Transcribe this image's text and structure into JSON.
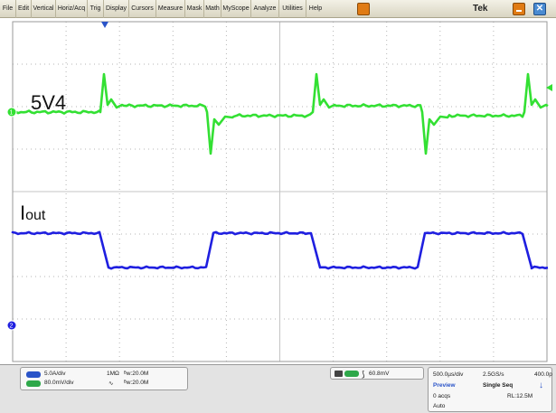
{
  "menu": {
    "items": [
      "File",
      "Edit",
      "Vertical",
      "Horiz/Acq",
      "Trig",
      "Display",
      "Cursors",
      "Measure",
      "Mask",
      "Math",
      "MyScope",
      "Analyze",
      "Utilities",
      "Help"
    ],
    "brand": "Tek"
  },
  "traces": {
    "ch1_label": "5V4",
    "ch2_label_main": "I",
    "ch2_label_sub": "out",
    "ch1_color": "#33e033",
    "ch2_color": "#1f1fe0",
    "marker_ch1": "1",
    "marker_ch2": "2"
  },
  "panel": {
    "ch1_scale": "5.0A/div",
    "ch1_impedance": "1MΩ",
    "ch1_bw": "20.0M",
    "ch2_scale": "80.0mV/div",
    "ch2_bw": "20.0M",
    "trigger_level": "60.8mV",
    "timebase": "500.0µs/div",
    "sample_rate": "2.5GS/s",
    "resolution": "400.0p",
    "mode_preview": "Preview",
    "mode_seq": "Single Seq",
    "acqs": "0 acqs",
    "record_length": "RL:12.5M",
    "trigger_mode": "Auto",
    "ch1_badge_color": "#2a54c8",
    "ch2_badge_color": "#2ea84a"
  }
}
